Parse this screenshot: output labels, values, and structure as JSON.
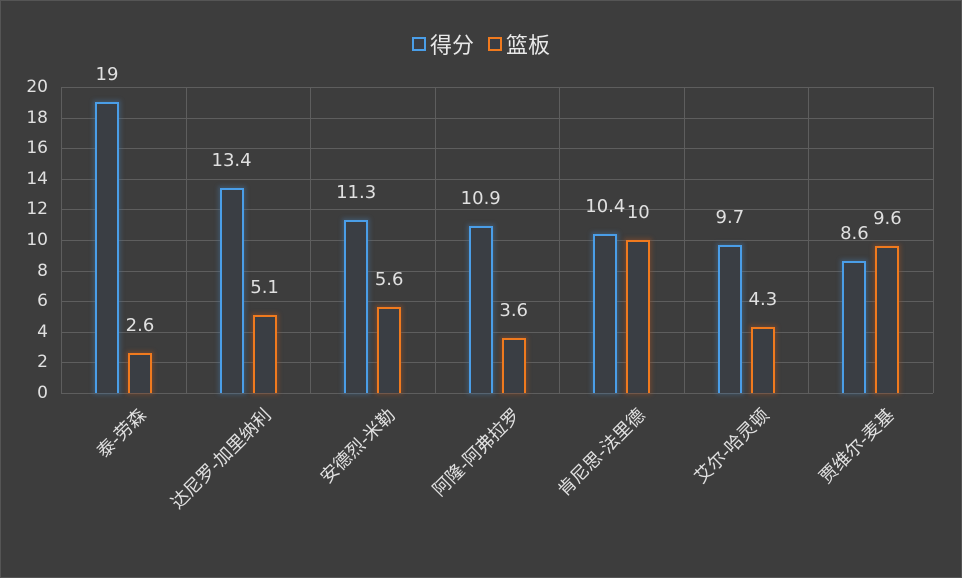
{
  "chart_data": {
    "type": "bar",
    "title": "",
    "xlabel": "",
    "ylabel": "",
    "ylim": [
      0,
      20
    ],
    "yticks": [
      0,
      2,
      4,
      6,
      8,
      10,
      12,
      14,
      16,
      18,
      20
    ],
    "grid": true,
    "legend_position": "top",
    "categories": [
      "泰-劳森",
      "达尼罗-加里纳利",
      "安德烈-米勒",
      "阿隆-阿弗拉罗",
      "肯尼思-法里德",
      "艾尔-哈灵顿",
      "贾维尔-麦基"
    ],
    "series": [
      {
        "name": "得分",
        "color": "#4a9ee8",
        "values": [
          19,
          13.4,
          11.3,
          10.9,
          10.4,
          9.7,
          8.6
        ]
      },
      {
        "name": "篮板",
        "color": "#f07a1e",
        "values": [
          2.6,
          5.1,
          5.6,
          3.6,
          10,
          4.3,
          9.6
        ]
      }
    ]
  },
  "colors": {
    "background": "#3d3d3d",
    "grid": "#5e5e5e",
    "text": "#e0e0e0"
  }
}
